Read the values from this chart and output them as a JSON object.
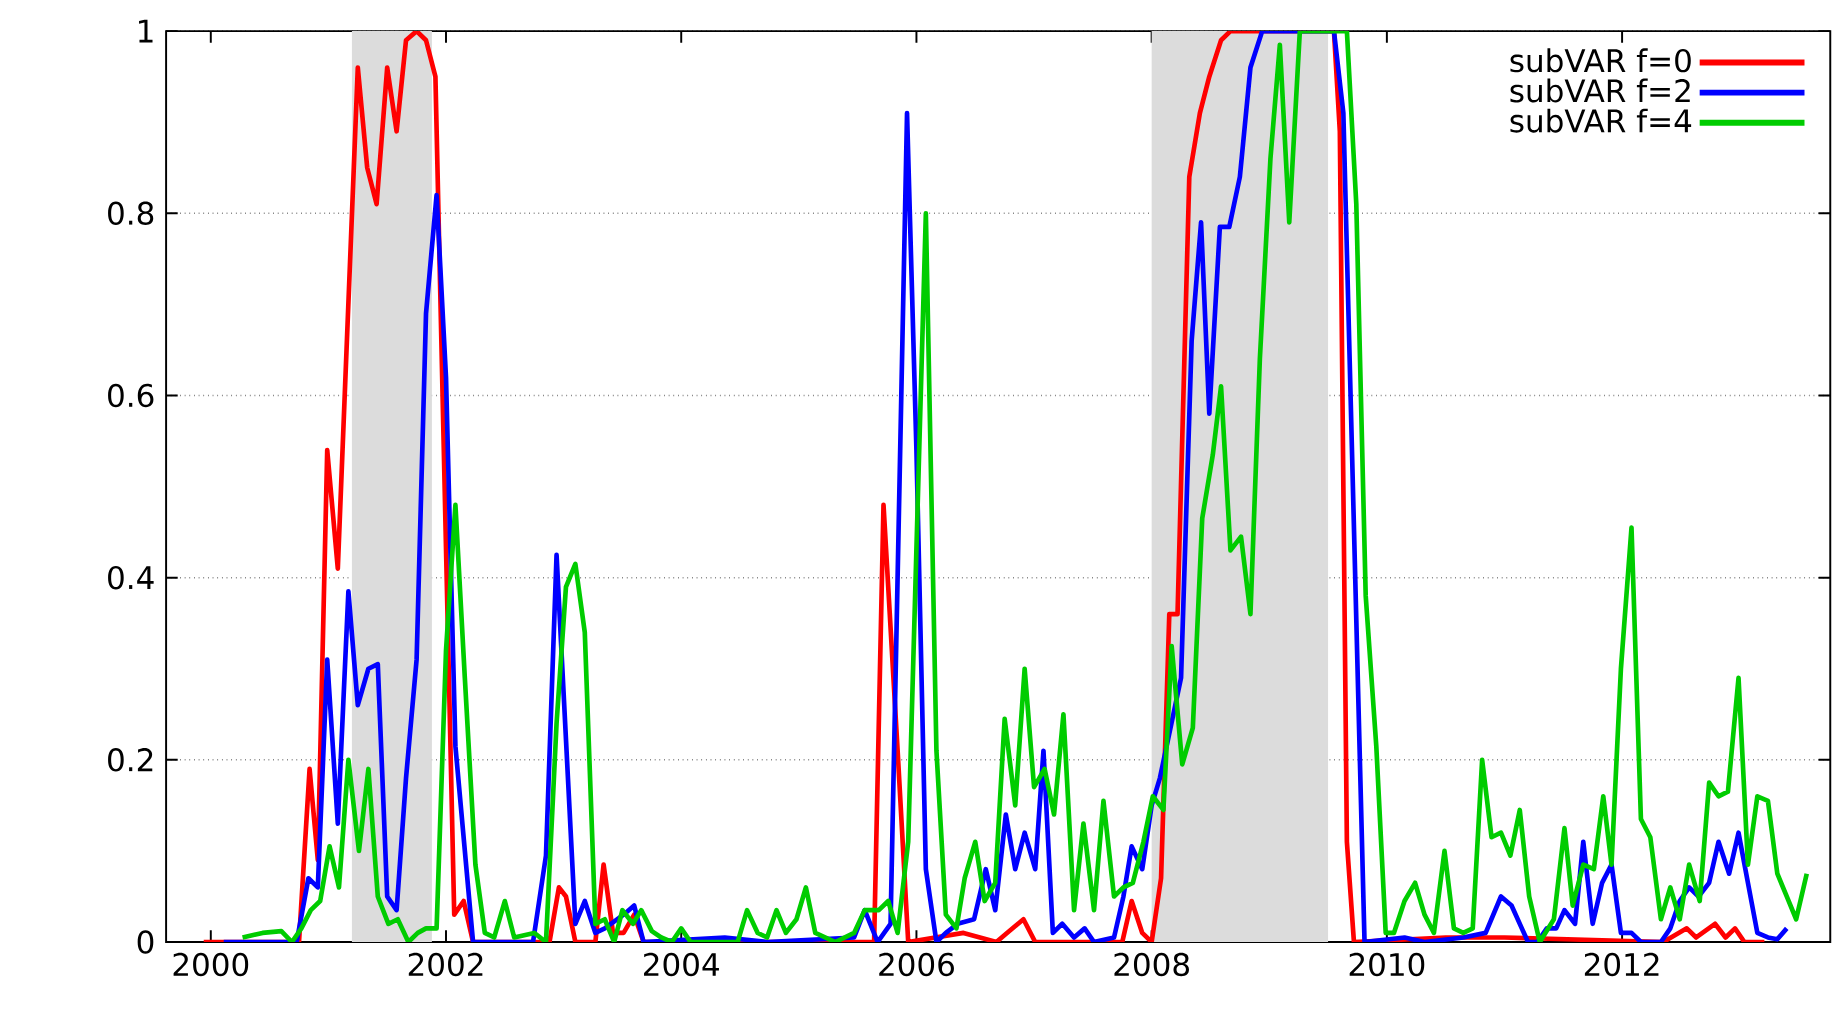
{
  "chart_data": {
    "type": "line",
    "xlim": [
      1999.62,
      2013.77
    ],
    "ylim": [
      0,
      1
    ],
    "xticks": [
      2000,
      2002,
      2004,
      2006,
      2008,
      2010,
      2012
    ],
    "yticks": [
      0,
      0.2,
      0.4,
      0.6,
      0.8,
      1
    ],
    "grid": "y",
    "legend": "top right",
    "bands": [
      {
        "axis": "x",
        "from": 2001.2,
        "to": 2001.88,
        "color": "#dcdcdc"
      },
      {
        "axis": "x",
        "from": 2008.0,
        "to": 2009.5,
        "color": "#dcdcdc"
      }
    ],
    "series": [
      {
        "name": "subVAR f=0",
        "color": "#ff0000",
        "x": [
          1999.94,
          2000.75,
          2000.84,
          2000.91,
          2000.99,
          2001.08,
          2001.25,
          2001.33,
          2001.41,
          2001.5,
          2001.58,
          2001.66,
          2001.75,
          2001.83,
          2001.91,
          2002.07,
          2002.15,
          2002.23,
          2002.88,
          2002.96,
          2003.02,
          2003.1,
          2003.27,
          2003.34,
          2003.42,
          2003.51,
          2003.6,
          2003.68,
          2005.64,
          2005.72,
          2005.84,
          2005.93,
          2006.4,
          2006.68,
          2006.77,
          2006.91,
          2007.01,
          2007.75,
          2007.83,
          2007.92,
          2008.0,
          2008.08,
          2008.15,
          2008.22,
          2008.32,
          2008.41,
          2008.49,
          2008.59,
          2008.67,
          2009.55,
          2009.6,
          2009.66,
          2009.72,
          2010.5,
          2011.0,
          2012.35,
          2012.55,
          2012.63,
          2012.79,
          2012.88,
          2012.96,
          2013.04,
          2013.21
        ],
        "values": [
          0,
          0,
          0.19,
          0.09,
          0.54,
          0.41,
          0.96,
          0.85,
          0.81,
          0.96,
          0.89,
          0.99,
          1.0,
          0.99,
          0.95,
          0.03,
          0.045,
          0,
          0,
          0.06,
          0.05,
          0,
          0,
          0.085,
          0.01,
          0.01,
          0.03,
          0,
          0,
          0.48,
          0.21,
          0,
          0.01,
          0,
          0.01,
          0.025,
          0,
          0,
          0.045,
          0.01,
          0,
          0.07,
          0.36,
          0.36,
          0.84,
          0.91,
          0.95,
          0.99,
          1.0,
          1.0,
          0.89,
          0.11,
          0,
          0.005,
          0.005,
          0,
          0.015,
          0.005,
          0.02,
          0.005,
          0.015,
          0,
          0
        ]
      },
      {
        "name": "subVAR f=2",
        "color": "#0000ff",
        "x": [
          2000.11,
          2000.73,
          2000.83,
          2000.91,
          2000.99,
          2001.08,
          2001.17,
          2001.25,
          2001.34,
          2001.42,
          2001.5,
          2001.58,
          2001.66,
          2001.75,
          2001.83,
          2001.92,
          2002.0,
          2002.08,
          2002.23,
          2002.74,
          2002.85,
          2002.94,
          2003.1,
          2003.18,
          2003.27,
          2003.35,
          2003.51,
          2003.6,
          2003.68,
          2004.37,
          2004.73,
          2005.47,
          2005.56,
          2005.67,
          2005.78,
          2005.92,
          2006.0,
          2006.08,
          2006.17,
          2006.25,
          2006.35,
          2006.49,
          2006.59,
          2006.67,
          2006.76,
          2006.84,
          2006.92,
          2007.01,
          2007.08,
          2007.16,
          2007.24,
          2007.34,
          2007.43,
          2007.51,
          2007.68,
          2007.76,
          2007.83,
          2007.92,
          2008.0,
          2008.07,
          2008.25,
          2008.34,
          2008.42,
          2008.49,
          2008.58,
          2008.66,
          2008.75,
          2008.84,
          2008.94,
          2009.55,
          2009.63,
          2009.81,
          2010.15,
          2010.32,
          2010.65,
          2010.84,
          2010.97,
          2011.06,
          2011.2,
          2011.28,
          2011.36,
          2011.44,
          2011.51,
          2011.6,
          2011.67,
          2011.75,
          2011.83,
          2011.91,
          2011.99,
          2012.08,
          2012.16,
          2012.33,
          2012.41,
          2012.49,
          2012.57,
          2012.65,
          2012.74,
          2012.82,
          2012.91,
          2012.99,
          2013.07,
          2013.15,
          2013.24,
          2013.32,
          2013.4
        ],
        "values": [
          0,
          0,
          0.07,
          0.06,
          0.31,
          0.13,
          0.385,
          0.26,
          0.3,
          0.305,
          0.05,
          0.035,
          0.18,
          0.31,
          0.69,
          0.82,
          0.62,
          0.215,
          0,
          0,
          0.095,
          0.425,
          0.02,
          0.045,
          0.01,
          0.015,
          0.03,
          0.04,
          0,
          0.005,
          0,
          0.005,
          0.035,
          0,
          0.02,
          0.91,
          0.54,
          0.08,
          0,
          0.01,
          0.02,
          0.025,
          0.08,
          0.035,
          0.14,
          0.08,
          0.12,
          0.08,
          0.21,
          0.01,
          0.02,
          0.005,
          0.015,
          0,
          0.005,
          0.05,
          0.105,
          0.08,
          0.15,
          0.18,
          0.29,
          0.66,
          0.79,
          0.58,
          0.785,
          0.785,
          0.84,
          0.96,
          1.0,
          1.0,
          0.91,
          0,
          0.005,
          0,
          0.005,
          0.01,
          0.05,
          0.04,
          0,
          0,
          0.015,
          0.015,
          0.035,
          0.02,
          0.11,
          0.02,
          0.065,
          0.085,
          0.01,
          0.01,
          0,
          0,
          0.015,
          0.045,
          0.06,
          0.05,
          0.065,
          0.11,
          0.075,
          0.12,
          0.065,
          0.01,
          0.005,
          0.003,
          0.015
        ]
      },
      {
        "name": "subVAR f=4",
        "color": "#00cc00",
        "x": [
          2000.27,
          2000.44,
          2000.6,
          2000.69,
          2000.77,
          2000.85,
          2000.93,
          2001.01,
          2001.09,
          2001.17,
          2001.26,
          2001.34,
          2001.42,
          2001.51,
          2001.59,
          2001.68,
          2001.76,
          2001.83,
          2001.92,
          2002.0,
          2002.08,
          2002.16,
          2002.25,
          2002.33,
          2002.41,
          2002.5,
          2002.58,
          2002.75,
          2002.85,
          2002.94,
          2003.02,
          2003.1,
          2003.18,
          2003.27,
          2003.35,
          2003.43,
          2003.5,
          2003.59,
          2003.66,
          2003.75,
          2003.83,
          2003.92,
          2004.0,
          2004.08,
          2004.48,
          2004.56,
          2004.65,
          2004.73,
          2004.81,
          2004.89,
          2004.98,
          2005.06,
          2005.14,
          2005.31,
          2005.47,
          2005.56,
          2005.68,
          2005.76,
          2005.84,
          2005.93,
          2006.08,
          2006.17,
          2006.25,
          2006.34,
          2006.41,
          2006.5,
          2006.58,
          2006.67,
          2006.75,
          2006.84,
          2006.92,
          2007.0,
          2007.09,
          2007.17,
          2007.25,
          2007.34,
          2007.42,
          2007.51,
          2007.59,
          2007.68,
          2007.76,
          2007.84,
          2007.93,
          2008.01,
          2008.1,
          2008.17,
          2008.26,
          2008.35,
          2008.43,
          2008.52,
          2008.59,
          2008.67,
          2008.76,
          2008.84,
          2008.92,
          2009.01,
          2009.09,
          2009.17,
          2009.26,
          2009.66,
          2009.74,
          2009.82,
          2009.91,
          2009.99,
          2010.06,
          2010.15,
          2010.24,
          2010.32,
          2010.4,
          2010.49,
          2010.57,
          2010.65,
          2010.73,
          2010.81,
          2010.89,
          2010.97,
          2011.05,
          2011.13,
          2011.21,
          2011.3,
          2011.42,
          2011.51,
          2011.58,
          2011.67,
          2011.76,
          2011.84,
          2011.91,
          2011.99,
          2012.08,
          2012.16,
          2012.24,
          2012.33,
          2012.41,
          2012.49,
          2012.57,
          2012.66,
          2012.74,
          2012.82,
          2012.9,
          2012.99,
          2013.07,
          2013.15,
          2013.24,
          2013.32,
          2013.4,
          2013.48,
          2013.57
        ],
        "values": [
          0.005,
          0.01,
          0.012,
          0,
          0.015,
          0.035,
          0.045,
          0.105,
          0.06,
          0.2,
          0.1,
          0.19,
          0.05,
          0.02,
          0.025,
          0,
          0.01,
          0.015,
          0.015,
          0.32,
          0.48,
          0.29,
          0.085,
          0.01,
          0.005,
          0.045,
          0.005,
          0.01,
          0,
          0.24,
          0.39,
          0.415,
          0.34,
          0.02,
          0.025,
          0,
          0.035,
          0.02,
          0.035,
          0.012,
          0.005,
          0,
          0.015,
          0,
          0,
          0.035,
          0.01,
          0.005,
          0.035,
          0.01,
          0.025,
          0.06,
          0.01,
          0,
          0.01,
          0.035,
          0.035,
          0.045,
          0.01,
          0.11,
          0.8,
          0.21,
          0.03,
          0.015,
          0.07,
          0.11,
          0.045,
          0.065,
          0.245,
          0.15,
          0.3,
          0.17,
          0.19,
          0.14,
          0.25,
          0.035,
          0.13,
          0.035,
          0.155,
          0.05,
          0.06,
          0.065,
          0.11,
          0.16,
          0.145,
          0.325,
          0.195,
          0.235,
          0.465,
          0.535,
          0.61,
          0.43,
          0.445,
          0.36,
          0.64,
          0.86,
          0.985,
          0.79,
          1.0,
          1.0,
          0.81,
          0.38,
          0.215,
          0.01,
          0.01,
          0.045,
          0.065,
          0.03,
          0.01,
          0.1,
          0.015,
          0.01,
          0.015,
          0.2,
          0.115,
          0.12,
          0.095,
          0.145,
          0.05,
          0,
          0.025,
          0.125,
          0.04,
          0.085,
          0.08,
          0.16,
          0.085,
          0.3,
          0.455,
          0.135,
          0.115,
          0.025,
          0.06,
          0.025,
          0.085,
          0.045,
          0.175,
          0.16,
          0.165,
          0.29,
          0.085,
          0.16,
          0.155,
          0.075,
          0.05,
          0.025,
          0.075
        ]
      }
    ]
  }
}
